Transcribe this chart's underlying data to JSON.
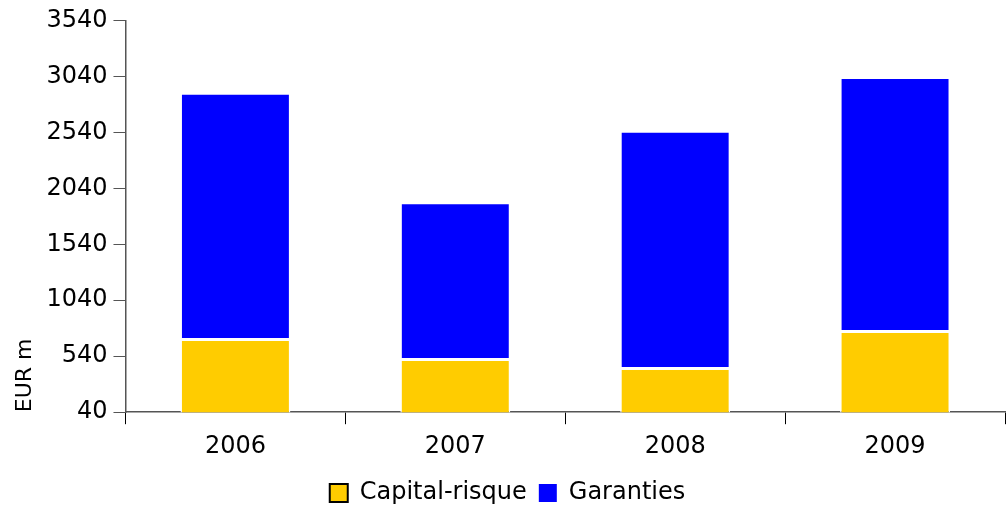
{
  "chart_data": {
    "type": "bar",
    "stacked": true,
    "ylabel": "EUR m",
    "categories": [
      "2006",
      "2007",
      "2008",
      "2009"
    ],
    "series": [
      {
        "name": "Capital-risque",
        "color": "#ffcc00",
        "values": [
          690,
          510,
          430,
          760
        ]
      },
      {
        "name": "Garanties",
        "color": "#0000ff",
        "values": [
          2200,
          1400,
          2120,
          2270
        ]
      }
    ],
    "ylim": [
      40,
      3540
    ],
    "yticks": [
      40,
      540,
      1040,
      1540,
      2040,
      2540,
      3040,
      3540
    ],
    "grid": false,
    "legend": "bottom"
  }
}
